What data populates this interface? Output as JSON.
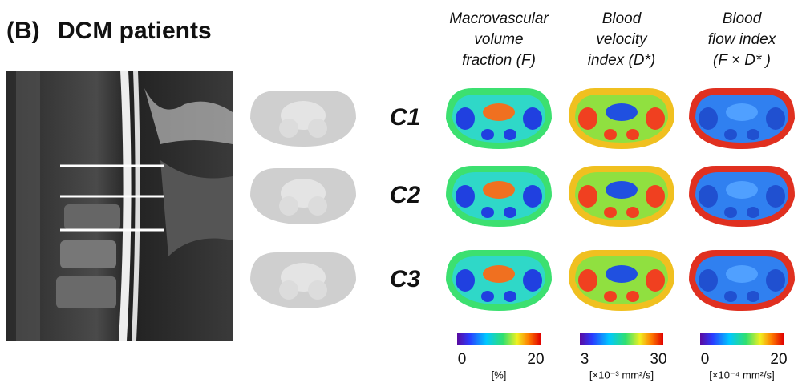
{
  "panel_label": "(B)",
  "title": "DCM patients",
  "columns": [
    {
      "title_lines": [
        "Macrovascular",
        "volume",
        "fraction (F)"
      ],
      "colorbar": {
        "min": 0,
        "max": 20,
        "unit": "[%]"
      }
    },
    {
      "title_lines": [
        "Blood",
        "velocity",
        "index (D*)"
      ],
      "colorbar": {
        "min": 3,
        "max": 30,
        "unit": "[×10⁻³ mm²/s]"
      }
    },
    {
      "title_lines": [
        "Blood",
        "flow index",
        "(F × D* )"
      ],
      "colorbar": {
        "min": 0,
        "max": 20,
        "unit": "[×10⁻⁴ mm²/s]"
      }
    }
  ],
  "rows": [
    "C1",
    "C2",
    "C3"
  ]
}
